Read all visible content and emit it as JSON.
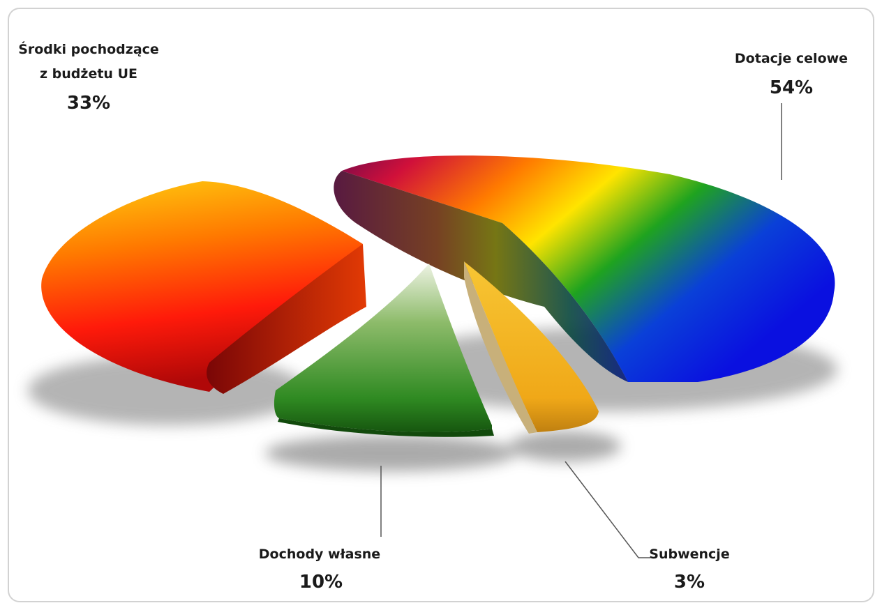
{
  "chart_data": {
    "type": "pie",
    "title": "",
    "style": "3d-exploded",
    "slices": [
      {
        "name_lines": [
          "Dotacje celowe"
        ],
        "value": 54,
        "label": "54%",
        "color": "rainbow"
      },
      {
        "name_lines": [
          "Subwencje"
        ],
        "value": 3,
        "label": "3%",
        "color": "#f2b21c"
      },
      {
        "name_lines": [
          "Dochody własne"
        ],
        "value": 10,
        "label": "10%",
        "color": "#2f8a22"
      },
      {
        "name_lines": [
          "Środki pochodzące",
          "z budżetu UE"
        ],
        "value": 33,
        "label": "33%",
        "color": "#f02a10"
      }
    ]
  }
}
